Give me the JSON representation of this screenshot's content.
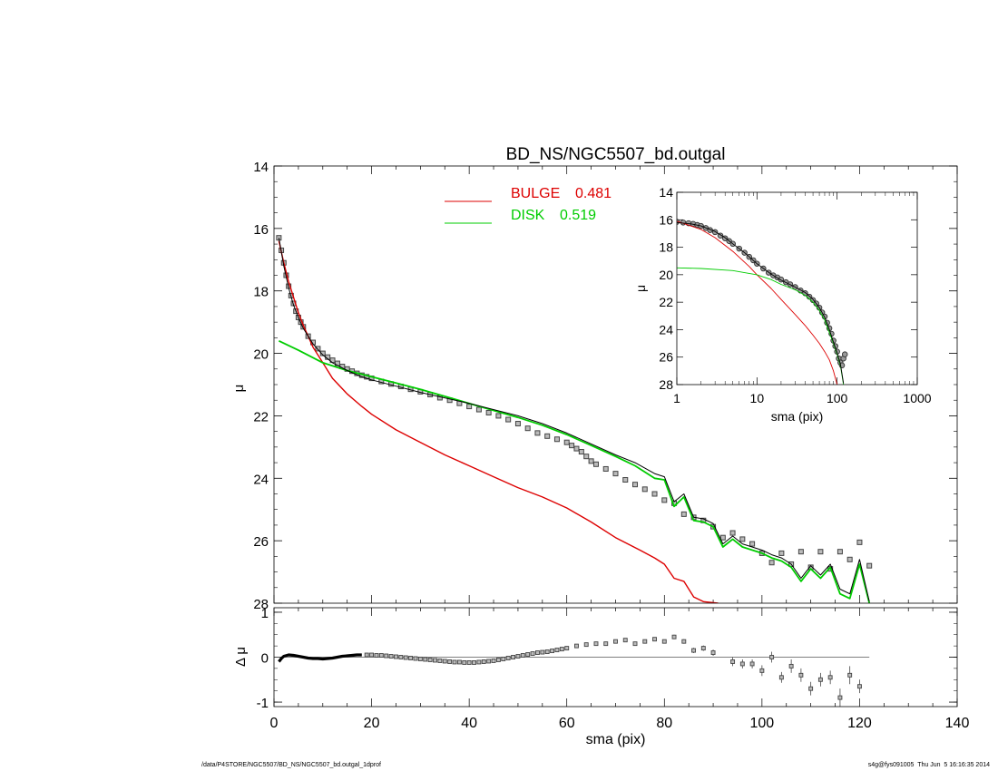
{
  "footer": {
    "path": "/data/P4STORE/NGC5507/BD_NS/NGC5507_bd.outgal_1dprof",
    "stamp": "s4g@fys091005  Thu Jun  5 16:16:35 2014"
  },
  "colors": {
    "bulge": "#dd0000",
    "disk": "#00cc00",
    "total": "#000000",
    "data": "#444444"
  },
  "chart_data": [
    {
      "id": "main",
      "type": "line",
      "title": "BD_NS/NGC5507_bd.outgal",
      "xlabel": "",
      "ylabel": "μ",
      "xlim": [
        0,
        140
      ],
      "ylim": [
        28,
        14
      ],
      "y_inverted": true,
      "x_ticks_labeled": false,
      "yticks": [
        14,
        16,
        18,
        20,
        22,
        24,
        26,
        28
      ],
      "ytick_labels": [
        "14",
        "16",
        "18",
        "20",
        "22",
        "24",
        "26",
        "28"
      ],
      "legend": {
        "position": "top-center",
        "entries": [
          {
            "label": "BULGE",
            "value": "0.481",
            "color": "#dd0000"
          },
          {
            "label": "DISK",
            "value": "0.519",
            "color": "#00cc00"
          }
        ]
      },
      "series": [
        {
          "name": "BULGE",
          "color": "#dd0000",
          "x": [
            1,
            2,
            3,
            4,
            5,
            6,
            8,
            10,
            12,
            15,
            18,
            20,
            25,
            30,
            35,
            40,
            45,
            50,
            55,
            60,
            65,
            70,
            75,
            78,
            80,
            82,
            84,
            86,
            88,
            91
          ],
          "y": [
            16.4,
            17.1,
            17.7,
            18.2,
            18.7,
            19.1,
            19.8,
            20.3,
            20.8,
            21.3,
            21.7,
            21.95,
            22.45,
            22.85,
            23.25,
            23.6,
            23.95,
            24.3,
            24.6,
            24.95,
            25.4,
            25.9,
            26.3,
            26.55,
            26.75,
            27.2,
            27.3,
            27.8,
            27.95,
            28.0
          ]
        },
        {
          "name": "DISK",
          "color": "#00cc00",
          "x": [
            1,
            5,
            10,
            15,
            20,
            25,
            30,
            40,
            50,
            55,
            60,
            65,
            70,
            74,
            78,
            80,
            82,
            84,
            86,
            88,
            90,
            92,
            94,
            96,
            100,
            102,
            104,
            106,
            108,
            110,
            112,
            114,
            116,
            118,
            120,
            122
          ],
          "y": [
            19.6,
            19.9,
            20.3,
            20.55,
            20.75,
            20.95,
            21.15,
            21.6,
            22.05,
            22.3,
            22.6,
            22.95,
            23.3,
            23.6,
            24.0,
            24.05,
            24.9,
            24.6,
            25.35,
            25.4,
            25.55,
            26.2,
            25.95,
            26.2,
            26.4,
            26.55,
            26.65,
            26.85,
            27.3,
            26.9,
            27.2,
            26.85,
            27.7,
            27.85,
            26.75,
            28.0
          ]
        },
        {
          "name": "",
          "color": "#000000",
          "x": [
            1,
            2,
            3,
            4,
            5,
            6,
            8,
            10,
            12,
            15,
            18,
            20,
            25,
            30,
            40,
            50,
            55,
            60,
            65,
            70,
            74,
            78,
            80,
            82,
            84,
            86,
            88,
            90,
            92,
            94,
            96,
            100,
            102,
            104,
            106,
            108,
            110,
            112,
            114,
            116,
            118,
            120,
            122
          ],
          "y": [
            16.3,
            17.2,
            17.9,
            18.45,
            18.85,
            19.2,
            19.7,
            20.05,
            20.3,
            20.55,
            20.75,
            20.85,
            21.05,
            21.25,
            21.6,
            22.0,
            22.25,
            22.55,
            22.9,
            23.25,
            23.5,
            23.85,
            23.95,
            24.75,
            24.5,
            25.25,
            25.3,
            25.45,
            26.1,
            25.85,
            26.1,
            26.3,
            26.45,
            26.55,
            26.75,
            27.2,
            26.8,
            27.1,
            26.75,
            27.55,
            27.7,
            26.6,
            27.95
          ]
        }
      ],
      "data_points": {
        "x": [
          1,
          1.5,
          2,
          2.5,
          3,
          3.5,
          4,
          4.5,
          5,
          5.5,
          6,
          7,
          8,
          9,
          10,
          11,
          12,
          13,
          14,
          15,
          16,
          17,
          18,
          19,
          20,
          22,
          24,
          26,
          28,
          30,
          32,
          34,
          36,
          38,
          40,
          42,
          44,
          46,
          48,
          50,
          52,
          54,
          56,
          58,
          60,
          61,
          62,
          63,
          64,
          65,
          66,
          68,
          70,
          72,
          74,
          76,
          78,
          80,
          82,
          84,
          86,
          88,
          90,
          92,
          94,
          96,
          98,
          100,
          102,
          104,
          106,
          108,
          110,
          112,
          114,
          116,
          118,
          120,
          122
        ],
        "y": [
          16.3,
          16.7,
          17.1,
          17.5,
          17.85,
          18.15,
          18.4,
          18.65,
          18.85,
          19.0,
          19.15,
          19.45,
          19.65,
          19.85,
          20.0,
          20.12,
          20.22,
          20.32,
          20.42,
          20.5,
          20.57,
          20.64,
          20.7,
          20.75,
          20.8,
          20.9,
          20.98,
          21.06,
          21.15,
          21.23,
          21.32,
          21.42,
          21.5,
          21.6,
          21.7,
          21.8,
          21.9,
          22.0,
          22.12,
          22.25,
          22.4,
          22.55,
          22.65,
          22.75,
          22.85,
          22.95,
          23.05,
          23.15,
          23.3,
          23.45,
          23.55,
          23.7,
          23.85,
          24.05,
          24.2,
          24.35,
          24.5,
          24.7,
          24.8,
          25.15,
          25.25,
          25.35,
          25.55,
          25.9,
          25.75,
          25.95,
          26.1,
          26.4,
          26.7,
          26.4,
          26.75,
          26.35,
          26.85,
          26.35,
          26.9,
          26.35,
          26.6,
          26.05,
          26.8
        ]
      }
    },
    {
      "id": "inset",
      "type": "line",
      "title": "",
      "xlabel": "sma (pix)",
      "ylabel": "μ",
      "xscale": "log",
      "xlim": [
        1,
        1000
      ],
      "ylim": [
        28,
        14
      ],
      "y_inverted": true,
      "xticks": [
        1,
        10,
        100,
        1000
      ],
      "xtick_labels": [
        "1",
        "10",
        "100",
        "1000"
      ],
      "yticks": [
        14,
        16,
        18,
        20,
        22,
        24,
        26,
        28
      ],
      "ytick_labels": [
        "14",
        "16",
        "18",
        "20",
        "22",
        "24",
        "26",
        "28"
      ],
      "series": [
        {
          "name": "BULGE",
          "color": "#dd0000",
          "x": [
            1,
            2,
            3,
            5,
            8,
            10,
            15,
            20,
            30,
            40,
            50,
            60,
            70,
            80,
            90,
            100
          ],
          "y": [
            16.1,
            16.7,
            17.3,
            18.3,
            19.4,
            20.0,
            21.0,
            21.8,
            22.9,
            23.7,
            24.4,
            25.0,
            25.6,
            26.2,
            27.0,
            28.0
          ]
        },
        {
          "name": "DISK",
          "color": "#00cc00",
          "x": [
            1,
            2,
            5,
            10,
            15,
            20,
            30,
            40,
            50,
            60,
            70,
            80,
            90,
            100,
            110,
            120
          ],
          "y": [
            19.5,
            19.55,
            19.7,
            20.0,
            20.35,
            20.7,
            21.1,
            21.5,
            22.0,
            22.6,
            23.3,
            24.2,
            25.0,
            25.8,
            26.6,
            28.0
          ]
        },
        {
          "name": "",
          "color": "#000000",
          "x": [
            1,
            1.5,
            2,
            3,
            4,
            5,
            7,
            10,
            15,
            20,
            30,
            40,
            50,
            60,
            70,
            80,
            90,
            100,
            110,
            120
          ],
          "y": [
            16.2,
            16.3,
            16.45,
            16.85,
            17.3,
            17.75,
            18.4,
            19.2,
            19.95,
            20.4,
            20.9,
            21.3,
            21.8,
            22.4,
            23.1,
            24.0,
            24.9,
            25.7,
            26.5,
            27.9
          ]
        }
      ],
      "data_points": {
        "x": [
          1,
          1.2,
          1.4,
          1.6,
          1.8,
          2,
          2.3,
          2.6,
          3,
          3.5,
          4,
          4.5,
          5,
          6,
          7,
          8,
          9,
          10,
          12,
          14,
          16,
          18,
          20,
          23,
          26,
          30,
          35,
          40,
          45,
          50,
          55,
          60,
          65,
          70,
          75,
          80,
          85,
          90,
          95,
          100,
          105,
          110,
          115,
          120,
          125
        ],
        "y": [
          16.15,
          16.2,
          16.25,
          16.3,
          16.38,
          16.45,
          16.6,
          16.75,
          16.9,
          17.15,
          17.35,
          17.55,
          17.75,
          18.1,
          18.4,
          18.7,
          18.95,
          19.2,
          19.55,
          19.85,
          20.05,
          20.2,
          20.35,
          20.55,
          20.7,
          20.9,
          21.15,
          21.35,
          21.6,
          21.85,
          22.1,
          22.4,
          22.75,
          23.05,
          23.5,
          23.9,
          24.3,
          24.8,
          25.2,
          25.6,
          26.1,
          26.4,
          26.6,
          26.1,
          25.8
        ]
      }
    },
    {
      "id": "residuals",
      "type": "scatter",
      "title": "",
      "xlabel": "sma (pix)",
      "ylabel": "Δ μ",
      "xlim": [
        0,
        140
      ],
      "ylim": [
        -1.1,
        1.1
      ],
      "xticks": [
        0,
        20,
        40,
        60,
        80,
        100,
        120,
        140
      ],
      "xtick_labels": [
        "0",
        "20",
        "40",
        "60",
        "80",
        "100",
        "120",
        "140"
      ],
      "yticks": [
        -1,
        0,
        1
      ],
      "ytick_labels": [
        "-1",
        "0",
        "1"
      ],
      "zero_line": {
        "x": [
          0,
          122
        ],
        "y": 0
      },
      "points": {
        "x": [
          19,
          20,
          21,
          22,
          23,
          24,
          25,
          26,
          27,
          28,
          29,
          30,
          31,
          32,
          33,
          34,
          35,
          36,
          37,
          38,
          39,
          40,
          41,
          42,
          43,
          44,
          45,
          46,
          47,
          48,
          49,
          50,
          51,
          52,
          53,
          54,
          55,
          56,
          57,
          58,
          59,
          60,
          62,
          64,
          66,
          68,
          70,
          72,
          74,
          76,
          78,
          80,
          82,
          84,
          86,
          88,
          90,
          94,
          96,
          98,
          100,
          102,
          104,
          106,
          108,
          110,
          112,
          114,
          116,
          118,
          120
        ],
        "y": [
          0.05,
          0.05,
          0.04,
          0.04,
          0.03,
          0.02,
          0.01,
          0.0,
          -0.01,
          -0.02,
          -0.03,
          -0.04,
          -0.05,
          -0.06,
          -0.07,
          -0.08,
          -0.09,
          -0.1,
          -0.11,
          -0.11,
          -0.12,
          -0.12,
          -0.12,
          -0.11,
          -0.1,
          -0.09,
          -0.08,
          -0.06,
          -0.04,
          -0.02,
          0.0,
          0.02,
          0.04,
          0.06,
          0.08,
          0.1,
          0.11,
          0.12,
          0.14,
          0.16,
          0.18,
          0.2,
          0.25,
          0.28,
          0.3,
          0.3,
          0.35,
          0.38,
          0.3,
          0.35,
          0.4,
          0.35,
          0.45,
          0.35,
          0.15,
          0.2,
          0.1,
          -0.1,
          -0.15,
          -0.15,
          -0.3,
          0.0,
          -0.45,
          -0.2,
          -0.4,
          -0.7,
          -0.5,
          -0.45,
          -0.9,
          -0.4,
          -0.65
        ],
        "yerr": [
          0.02,
          0.02,
          0.02,
          0.02,
          0.02,
          0.02,
          0.02,
          0.02,
          0.02,
          0.02,
          0.02,
          0.02,
          0.02,
          0.02,
          0.02,
          0.02,
          0.02,
          0.02,
          0.02,
          0.02,
          0.02,
          0.02,
          0.02,
          0.02,
          0.02,
          0.02,
          0.02,
          0.02,
          0.02,
          0.02,
          0.02,
          0.02,
          0.02,
          0.02,
          0.02,
          0.02,
          0.02,
          0.02,
          0.02,
          0.02,
          0.02,
          0.02,
          0.02,
          0.02,
          0.02,
          0.02,
          0.02,
          0.03,
          0.03,
          0.03,
          0.04,
          0.04,
          0.05,
          0.05,
          0.06,
          0.06,
          0.07,
          0.1,
          0.1,
          0.1,
          0.12,
          0.12,
          0.12,
          0.15,
          0.15,
          0.15,
          0.15,
          0.15,
          0.2,
          0.2,
          0.15
        ]
      },
      "dense_curve": {
        "x": [
          1,
          1.5,
          2,
          3,
          4,
          5,
          6,
          7,
          8,
          9,
          10,
          11,
          12,
          13,
          14,
          15,
          16,
          17,
          18
        ],
        "y": [
          -0.1,
          -0.03,
          0.02,
          0.05,
          0.04,
          0.02,
          0.0,
          -0.02,
          -0.03,
          -0.03,
          -0.04,
          -0.03,
          -0.02,
          0.0,
          0.02,
          0.03,
          0.04,
          0.05,
          0.05
        ]
      }
    }
  ]
}
